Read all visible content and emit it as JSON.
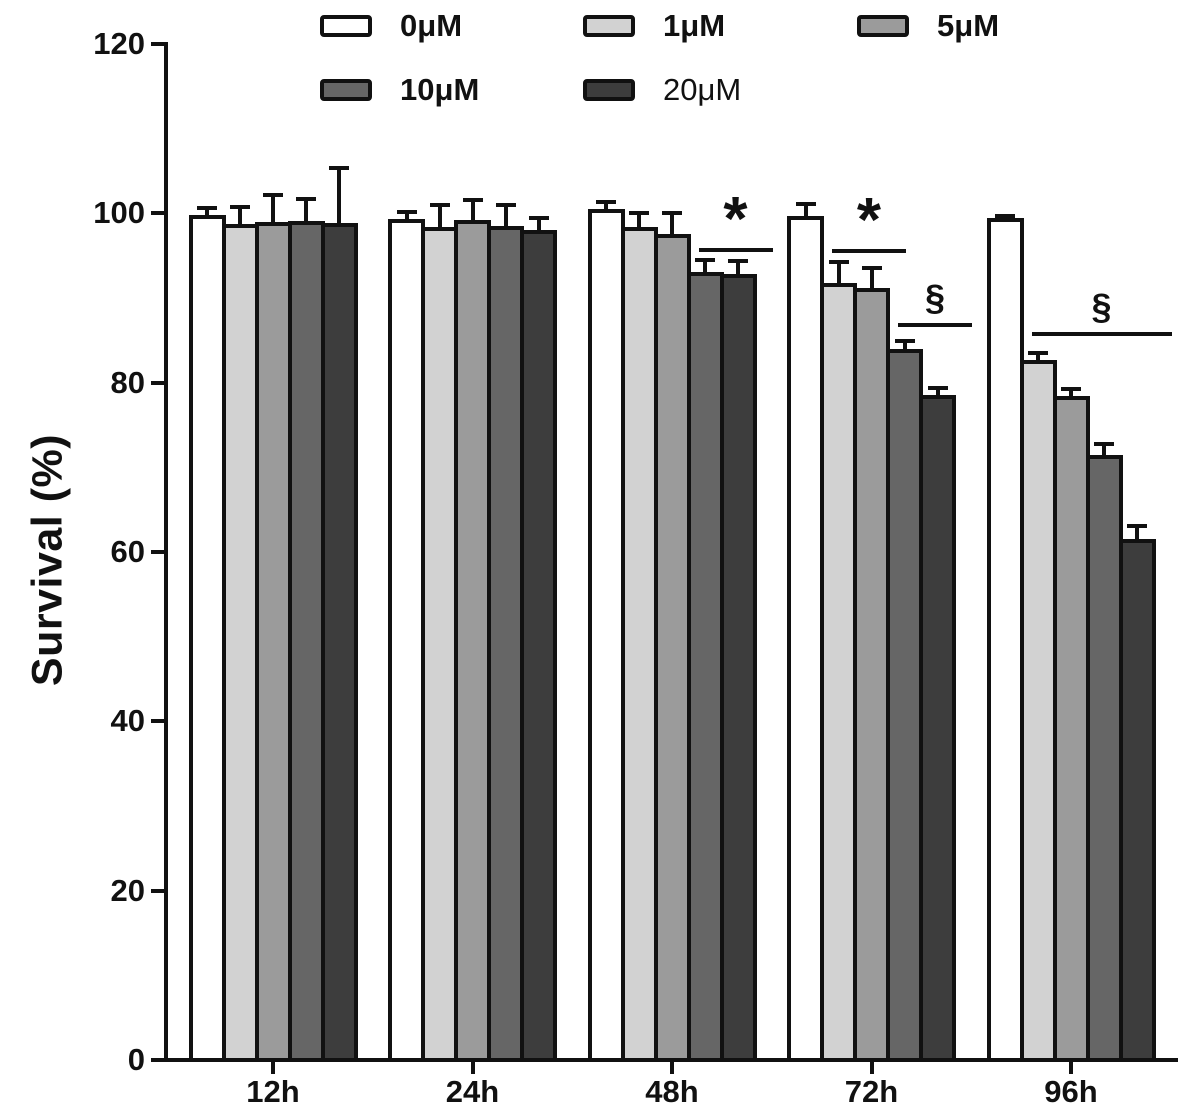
{
  "chart_data": {
    "type": "bar",
    "title": "",
    "xlabel": "",
    "ylabel": "Survival (%)",
    "ylim": [
      0,
      120
    ],
    "y_ticks": [
      0,
      20,
      40,
      60,
      80,
      100,
      120
    ],
    "grid": false,
    "legend_position": "top",
    "error_bars": "upper",
    "categories": [
      "12h",
      "24h",
      "48h",
      "72h",
      "96h"
    ],
    "series": [
      {
        "name": "0μM",
        "color": "#ffffff",
        "values": [
          99.8,
          99.3,
          100.5,
          99.7,
          99.4
        ],
        "errors": [
          0.8,
          0.9,
          0.8,
          1.4,
          0.3
        ]
      },
      {
        "name": "1μM",
        "color": "#d2d2d2",
        "values": [
          98.7,
          98.4,
          98.4,
          91.8,
          82.7
        ],
        "errors": [
          2.0,
          2.6,
          1.6,
          2.5,
          0.8
        ]
      },
      {
        "name": "5μM",
        "color": "#9b9b9b",
        "values": [
          99.0,
          99.2,
          97.6,
          91.2,
          78.4
        ],
        "errors": [
          3.2,
          2.4,
          2.4,
          2.3,
          0.8
        ]
      },
      {
        "name": "10μM",
        "color": "#666666",
        "values": [
          99.1,
          98.5,
          93.1,
          84.0,
          71.4
        ],
        "errors": [
          2.6,
          2.5,
          1.4,
          0.9,
          1.4
        ]
      },
      {
        "name": "20μM",
        "color": "#3d3d3d",
        "values": [
          98.8,
          98.0,
          92.8,
          78.6,
          61.5
        ],
        "errors": [
          6.5,
          1.4,
          1.6,
          0.8,
          1.6
        ]
      }
    ],
    "significance": [
      {
        "category": "48h",
        "symbol": "*",
        "from_series": "10μM",
        "to_series": "20μM",
        "line_y": 95.9
      },
      {
        "category": "72h",
        "symbol": "*",
        "from_series": "1μM",
        "to_series": "5μM",
        "line_y": 95.8
      },
      {
        "category": "72h",
        "symbol": "§",
        "from_series": "10μM",
        "to_series": "20μM",
        "line_y": 87.0
      },
      {
        "category": "96h",
        "symbol": "§",
        "from_series": "1μM",
        "to_series": "20μM",
        "line_y": 86.0
      }
    ]
  }
}
